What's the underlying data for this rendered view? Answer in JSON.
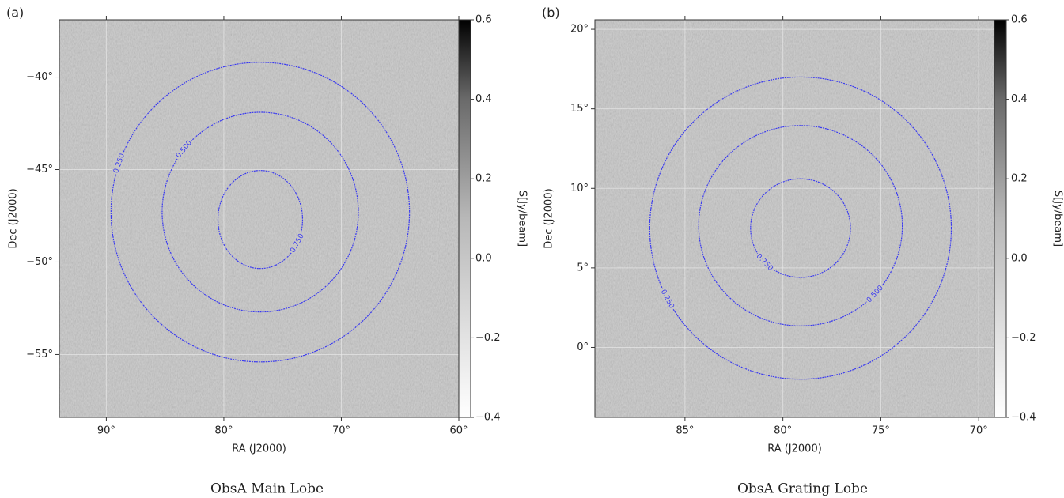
{
  "chart_data": [
    {
      "type": "skymap",
      "panel_label": "(a)",
      "caption": "ObsA Main Lobe",
      "x_label": "RA (J2000)",
      "y_label": "Dec (J2000)",
      "colorbar_label": "S[Jy/beam]",
      "xlim": [
        94,
        60
      ],
      "ylim": [
        -58.4,
        -36.9
      ],
      "xticks": [
        {
          "value": 90,
          "label": "90°"
        },
        {
          "value": 80,
          "label": "80°"
        },
        {
          "value": 70,
          "label": "70°"
        },
        {
          "value": 60,
          "label": "60°"
        }
      ],
      "yticks": [
        {
          "value": -40,
          "label": "−40°"
        },
        {
          "value": -45,
          "label": "−45°"
        },
        {
          "value": -50,
          "label": "−50°"
        },
        {
          "value": -55,
          "label": "−55°"
        }
      ],
      "clim": [
        -0.4,
        0.6
      ],
      "cticks": [
        0.6,
        0.4,
        0.2,
        {
          "value": 0,
          "label": "0.0"
        },
        {
          "value": -0.2,
          "label": "−0.2"
        },
        {
          "value": -0.4,
          "label": "−0.4"
        }
      ],
      "contour_color": "#3a3af0",
      "grid": true,
      "contours": [
        {
          "level": 0.25,
          "label": "0.250",
          "center": [
            76.9,
            -47.3
          ],
          "radius": [
            12.7,
            8.1
          ]
        },
        {
          "level": 0.5,
          "label": "0.500",
          "center": [
            76.9,
            -47.3
          ],
          "radius": [
            8.35,
            5.4
          ]
        },
        {
          "level": 0.75,
          "label": "0.750",
          "center": [
            76.9,
            -47.7
          ],
          "radius": [
            3.6,
            2.65
          ]
        }
      ]
    },
    {
      "type": "skymap",
      "panel_label": "(b)",
      "caption": "ObsA Grating Lobe",
      "x_label": "RA (J2000)",
      "y_label": "Dec (J2000)",
      "colorbar_label": "S[Jy/beam]",
      "xlim": [
        89.6,
        69.2
      ],
      "ylim": [
        -4.4,
        20.6
      ],
      "xticks": [
        {
          "value": 85,
          "label": "85°"
        },
        {
          "value": 80,
          "label": "80°"
        },
        {
          "value": 75,
          "label": "75°"
        },
        {
          "value": 70,
          "label": "70°"
        }
      ],
      "yticks": [
        {
          "value": 20,
          "label": "20°"
        },
        {
          "value": 15,
          "label": "15°"
        },
        {
          "value": 10,
          "label": "10°"
        },
        {
          "value": 5,
          "label": "5°"
        },
        {
          "value": 0,
          "label": "0°"
        }
      ],
      "clim": [
        -0.4,
        0.6
      ],
      "cticks": [
        0.6,
        0.4,
        0.2,
        {
          "value": 0,
          "label": "0.0"
        },
        {
          "value": -0.2,
          "label": "−0.2"
        },
        {
          "value": -0.4,
          "label": "−0.4"
        }
      ],
      "contour_color": "#3a3af0",
      "grid": true,
      "contours": [
        {
          "level": 0.25,
          "label": "0.250",
          "center": [
            79.1,
            7.5
          ],
          "radius": [
            7.7,
            9.5
          ]
        },
        {
          "level": 0.5,
          "label": "0.500",
          "center": [
            79.1,
            7.65
          ],
          "radius": [
            5.2,
            6.3
          ]
        },
        {
          "level": 0.75,
          "label": "0.750",
          "center": [
            79.1,
            7.5
          ],
          "radius": [
            2.55,
            3.1
          ]
        }
      ]
    }
  ]
}
